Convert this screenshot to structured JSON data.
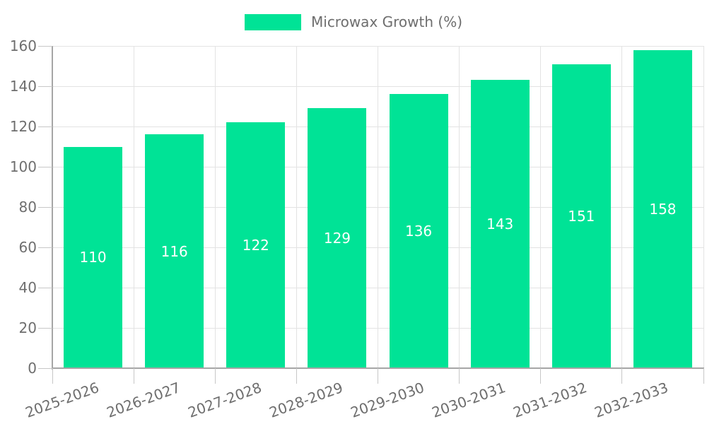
{
  "chart": {
    "legend_label": "Microwax Growth (%)"
  },
  "chart_data": {
    "type": "bar",
    "categories": [
      "2025-2026",
      "2026-2027",
      "2027-2028",
      "2028-2029",
      "2029-2030",
      "2030-2031",
      "2031-2032",
      "2032-2033"
    ],
    "series": [
      {
        "name": "Microwax Growth (%)",
        "values": [
          110,
          116,
          122,
          129,
          136,
          143,
          151,
          158
        ]
      }
    ],
    "xlabel": "",
    "ylabel": "",
    "ylim": [
      0,
      160
    ],
    "yticks": [
      0,
      20,
      40,
      60,
      80,
      100,
      120,
      140,
      160
    ],
    "grid": true,
    "legend_position": "top-center",
    "x_label_rotation_deg": -20,
    "value_labels": "inside-center",
    "colors": {
      "bar": "#00E396",
      "value_label": "#FFFFFF",
      "tick_label": "#6E6E6E",
      "legend_label": "#6E6E6E",
      "grid_line": "#E3E3E3",
      "axis_line": "#A6A6A6",
      "tick_mark": "#C7C7C7",
      "background": "#FFFFFF"
    }
  }
}
